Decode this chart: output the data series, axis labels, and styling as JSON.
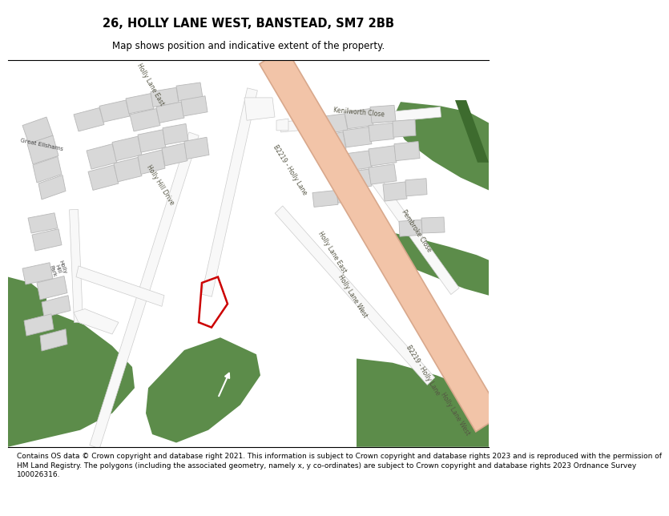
{
  "title": "26, HOLLY LANE WEST, BANSTEAD, SM7 2BB",
  "subtitle": "Map shows position and indicative extent of the property.",
  "footer_lines": [
    "Contains OS data © Crown copyright and database right 2021. This information is subject to Crown copyright and database rights 2023 and is reproduced with the permission of",
    "HM Land Registry. The polygons (including the associated geometry, namely x, y co-ordinates) are subject to Crown copyright and database rights 2023 Ordnance Survey",
    "100026316."
  ],
  "map_bg": "#f7f6f2",
  "green_color": "#5c8c4a",
  "green_dark": "#3d6b2e",
  "road_fill": "#f2c4a8",
  "road_edge": "#d8a88c",
  "white_road": "#f8f8f8",
  "building_fill": "#d8d8d8",
  "building_edge": "#b8b8b8",
  "plot_edge": "#cc0000",
  "label_color": "#555544",
  "place_color": "#444444"
}
